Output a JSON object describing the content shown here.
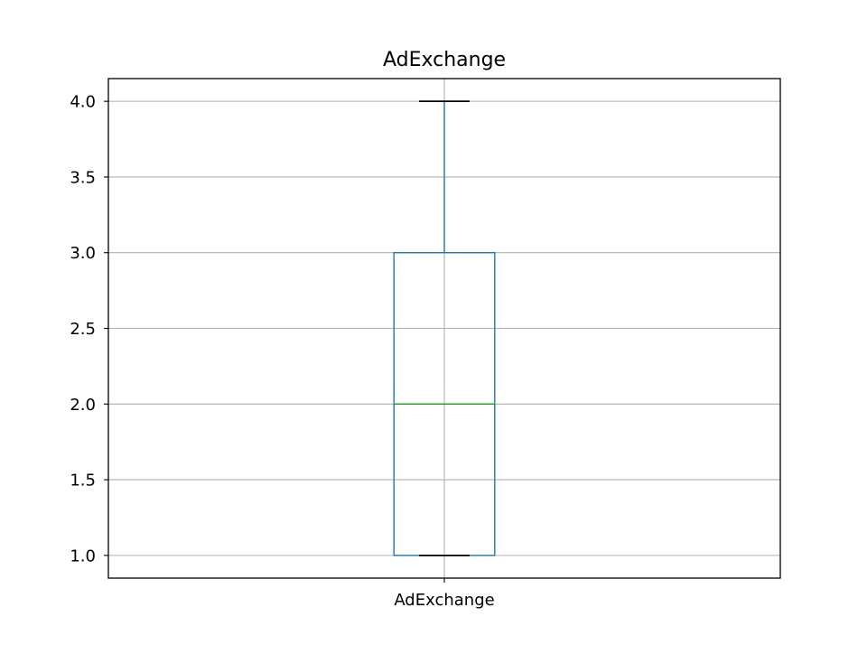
{
  "chart_data": {
    "type": "box",
    "title": "AdExchange",
    "categories": [
      "AdExchange"
    ],
    "series": [
      {
        "whisker_low": 1.0,
        "q1": 1.0,
        "median": 2.0,
        "q3": 3.0,
        "whisker_high": 4.0
      }
    ],
    "ylim": [
      0.85,
      4.15
    ],
    "yticks": [
      1.0,
      1.5,
      2.0,
      2.5,
      3.0,
      3.5,
      4.0
    ],
    "ytick_labels": [
      "1.0",
      "1.5",
      "2.0",
      "2.5",
      "3.0",
      "3.5",
      "4.0"
    ],
    "grid": true,
    "colors": {
      "box": "#1f77b4",
      "median": "#2ca02c",
      "caps": "#000000",
      "grid": "#b0b0b0",
      "frame": "#000000"
    }
  }
}
